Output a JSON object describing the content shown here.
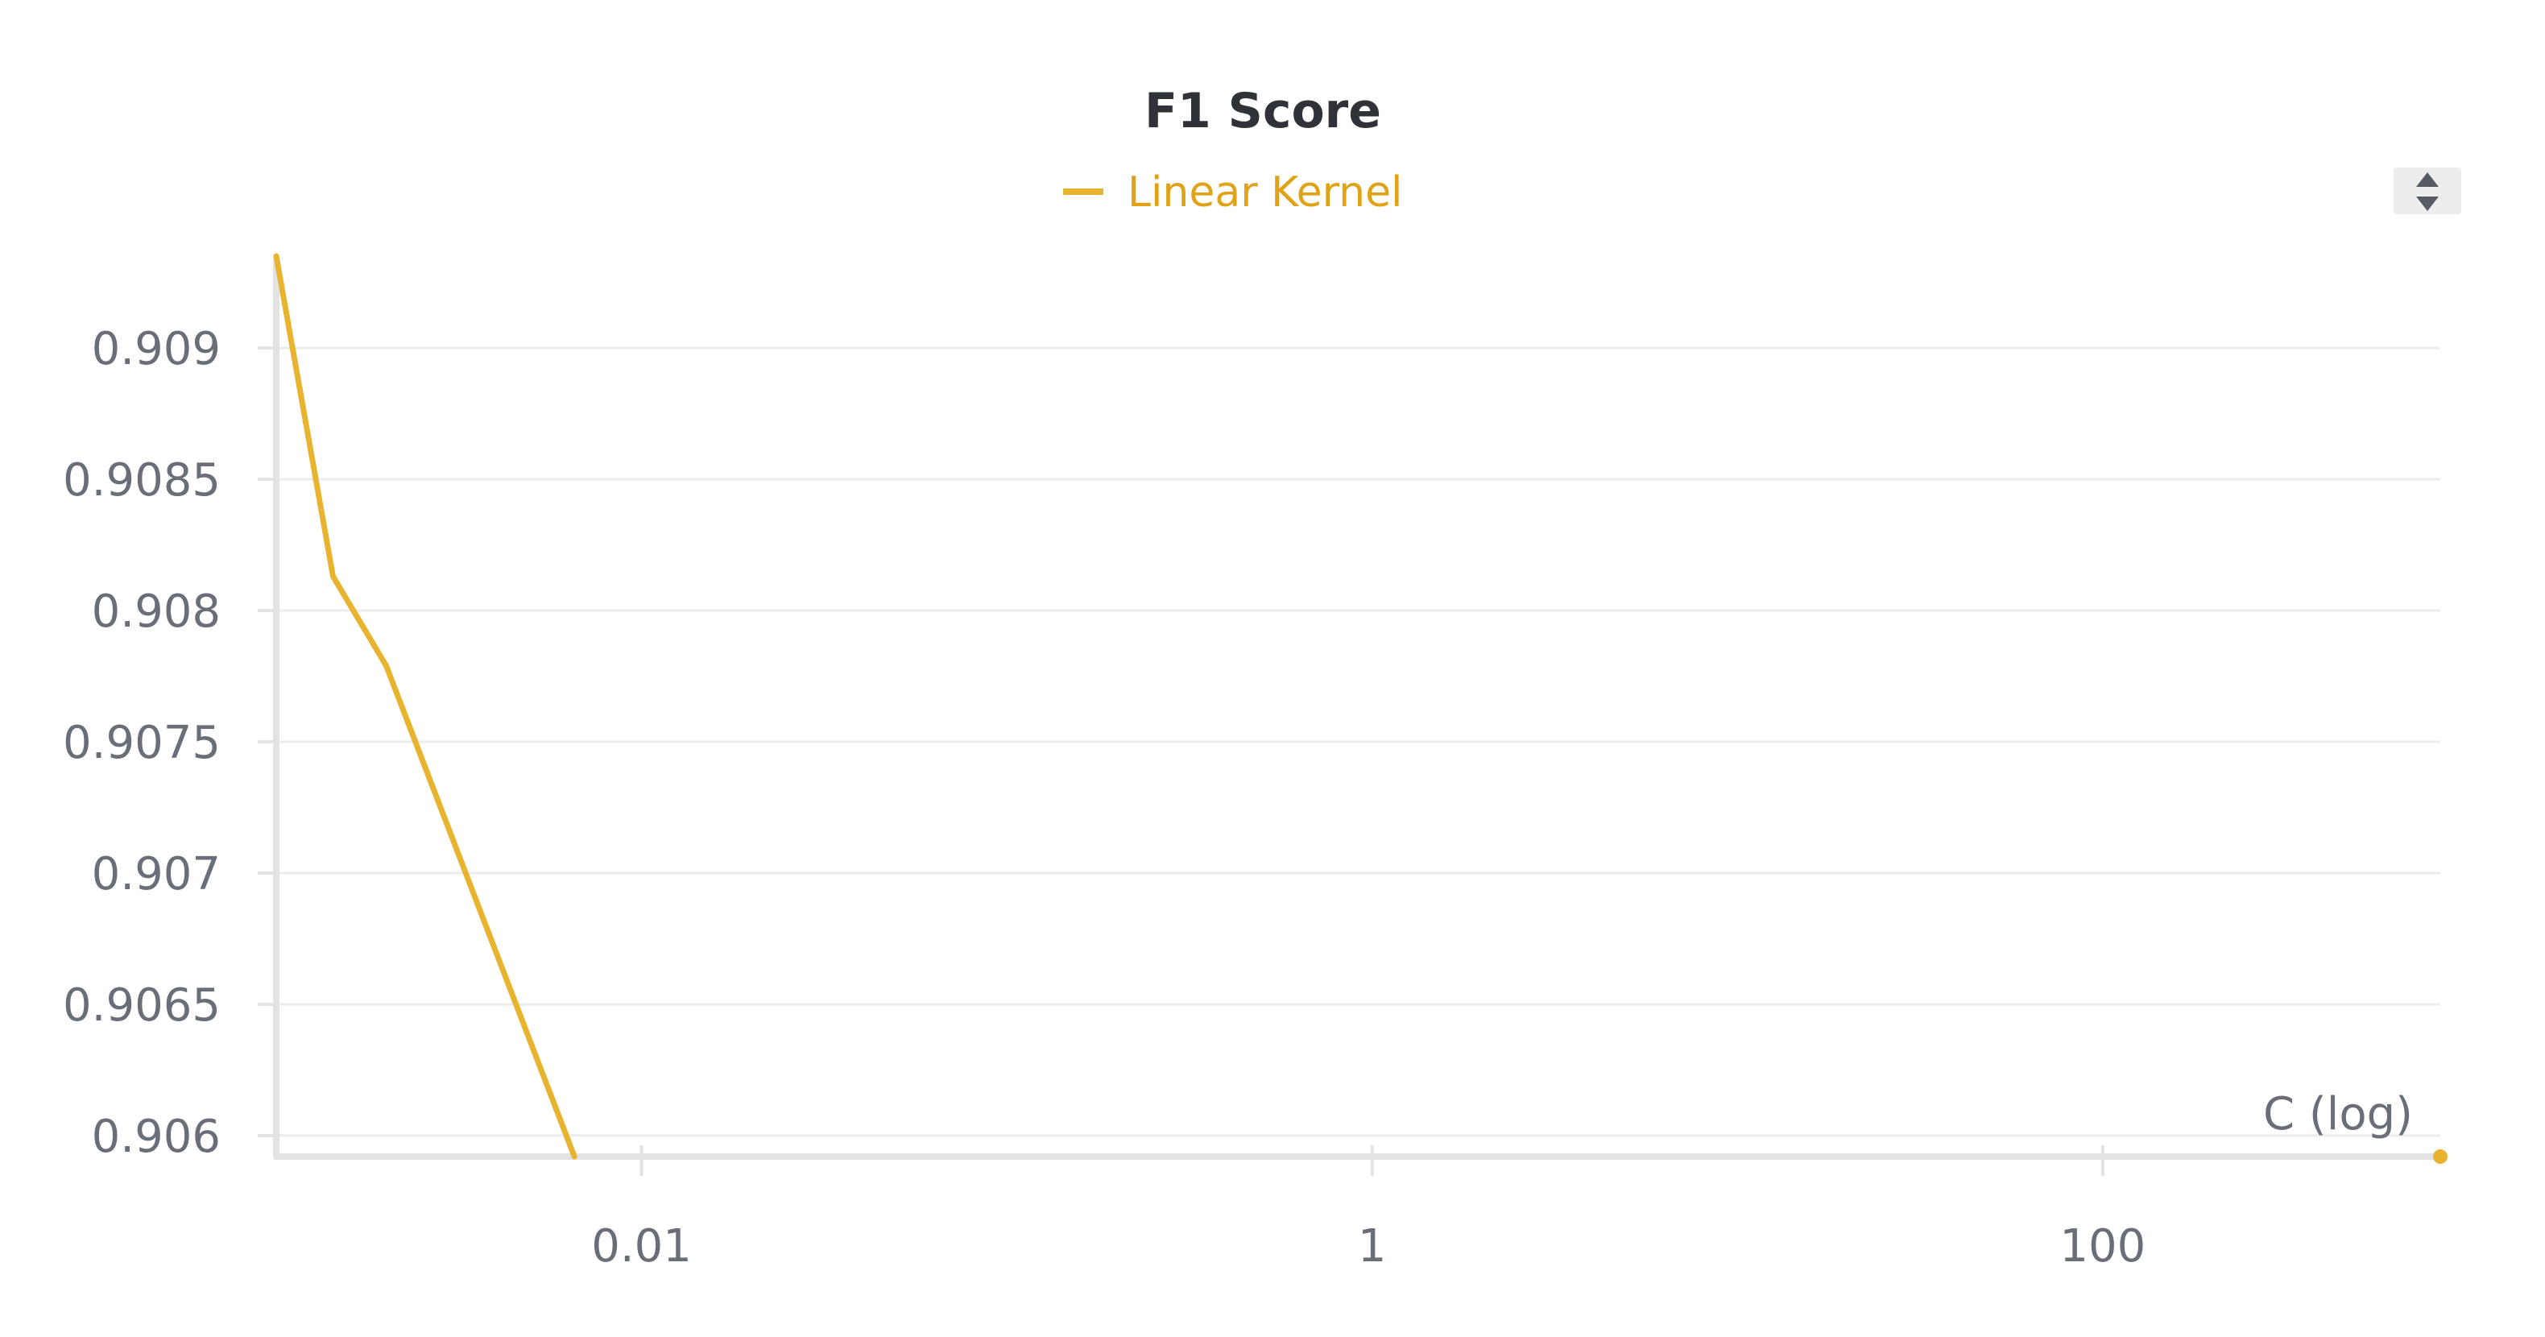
{
  "chart_data": {
    "type": "line",
    "title": "F1 Score",
    "xlabel": "C (log)",
    "ylabel": "",
    "xscale": "log",
    "xlim": [
      0.001,
      840
    ],
    "ylim": [
      0.90592,
      0.90935
    ],
    "x_ticks": [
      0.01,
      1,
      100
    ],
    "x_tick_labels": [
      "0.01",
      "1",
      "100"
    ],
    "y_ticks": [
      0.906,
      0.9065,
      0.907,
      0.9075,
      0.908,
      0.9085,
      0.909
    ],
    "y_tick_labels": [
      "0.906",
      "0.9065",
      "0.907",
      "0.9075",
      "0.908",
      "0.9085",
      "0.909"
    ],
    "grid": true,
    "legend_position": "top-center",
    "series": [
      {
        "name": "Linear Kernel",
        "color": "#e8b430",
        "x": [
          0.001,
          0.00143,
          0.002,
          0.00655
        ],
        "y": [
          0.90935,
          0.90813,
          0.90779,
          0.90592
        ]
      }
    ],
    "end_marker": {
      "x": 840,
      "y": 0.90592
    }
  },
  "legend": {
    "text_color": "#e0a216"
  },
  "controls": {
    "legend_scroll_icon": "up-down-arrows-icon"
  }
}
